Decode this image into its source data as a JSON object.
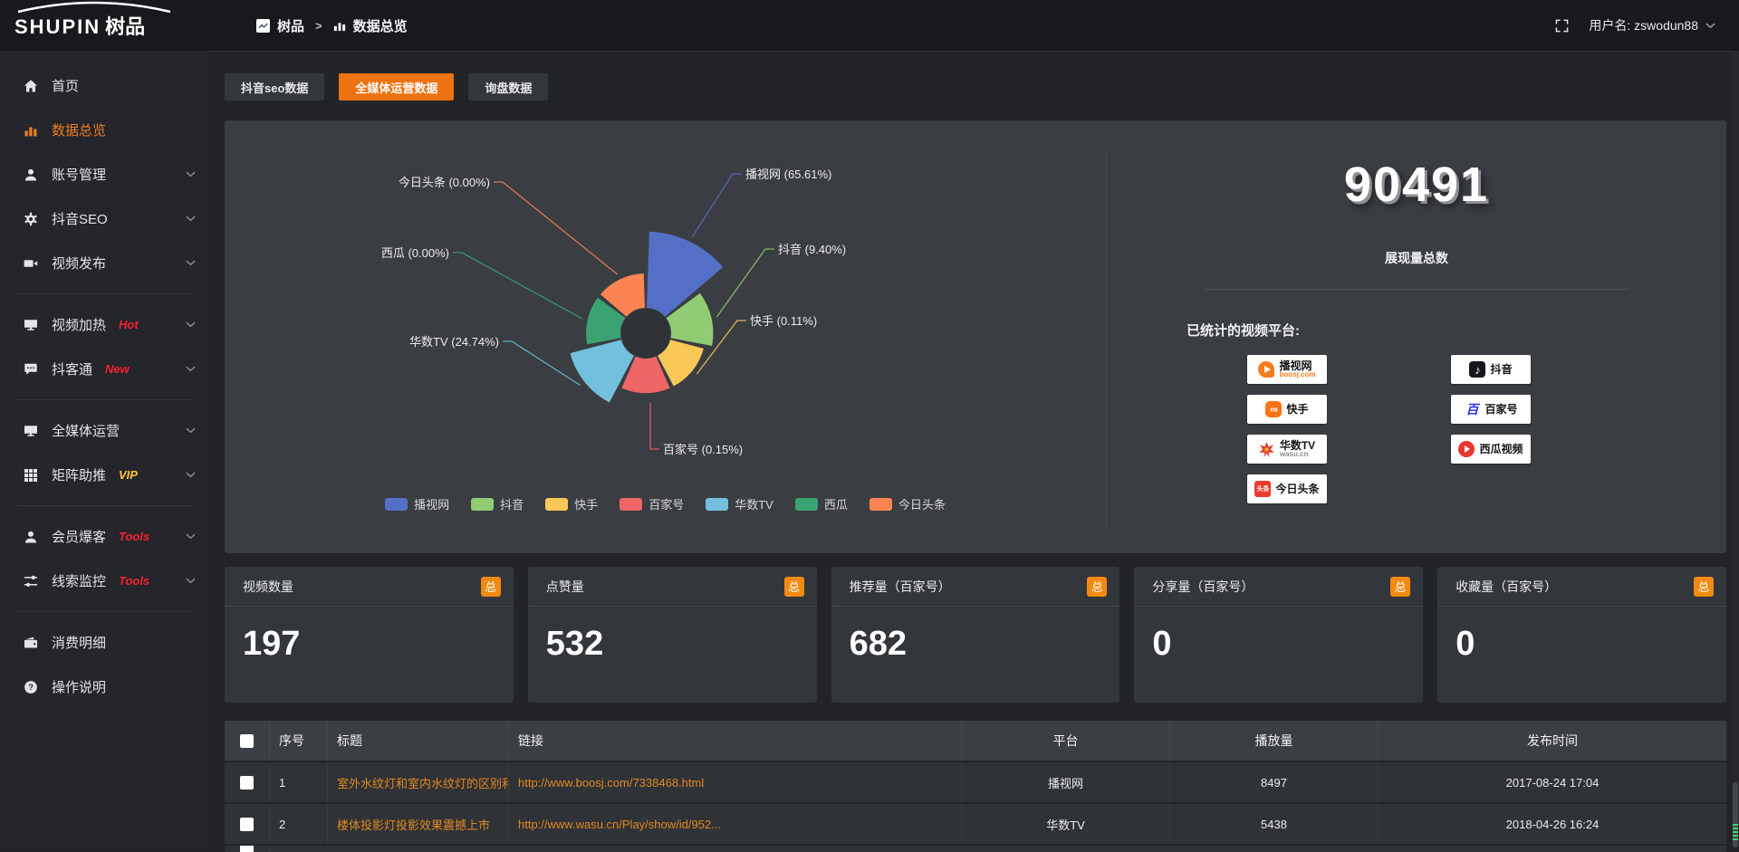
{
  "topbar": {
    "logo_text": "SHUPIN",
    "logo_suffix": "树品",
    "breadcrumb": {
      "root": "树品",
      "separator": ">",
      "current": "数据总览"
    },
    "user_label": "用户名: zswodun88"
  },
  "sidebar": {
    "items": [
      {
        "icon": "home-icon",
        "label": "首页"
      },
      {
        "icon": "bar-chart-icon",
        "label": "数据总览",
        "active": true
      },
      {
        "icon": "user-icon",
        "label": "账号管理",
        "expandable": true
      },
      {
        "icon": "gear-icon",
        "label": "抖音SEO",
        "expandable": true
      },
      {
        "icon": "video-camera-icon",
        "label": "视频发布",
        "expandable": true
      },
      {
        "divider": true
      },
      {
        "icon": "monitor-icon",
        "label": "视频加热",
        "tag": "Hot",
        "tag_color": "#f5222d",
        "expandable": true
      },
      {
        "icon": "chat-icon",
        "label": "抖客通",
        "tag": "New",
        "tag_color": "#f5222d",
        "expandable": true
      },
      {
        "divider": true
      },
      {
        "icon": "screen-icon",
        "label": "全媒体运营",
        "expandable": true
      },
      {
        "icon": "grid-icon",
        "label": "矩阵助推",
        "tag": "VIP",
        "tag_color": "#ffc53d",
        "expandable": true
      },
      {
        "divider": true
      },
      {
        "icon": "member-icon",
        "label": "会员爆客",
        "tag": "Tools",
        "tag_color": "#f5222d",
        "expandable": true
      },
      {
        "icon": "sliders-icon",
        "label": "线索监控",
        "tag": "Tools",
        "tag_color": "#f5222d",
        "expandable": true
      },
      {
        "divider": true
      },
      {
        "icon": "wallet-icon",
        "label": "消费明细"
      },
      {
        "icon": "question-icon",
        "label": "操作说明"
      }
    ]
  },
  "tabs": [
    {
      "label": "抖音seo数据",
      "active": false
    },
    {
      "label": "全媒体运营数据",
      "active": true
    },
    {
      "label": "询盘数据",
      "active": false
    }
  ],
  "chart_data": {
    "type": "pie",
    "variant": "nightingale-rose",
    "title": "",
    "categories": [
      "播视网",
      "抖音",
      "快手",
      "百家号",
      "华数TV",
      "西瓜",
      "今日头条"
    ],
    "values": [
      65.61,
      9.4,
      0.11,
      0.15,
      24.74,
      0,
      0
    ],
    "unit": "%",
    "colors": [
      "#5470c6",
      "#91cc75",
      "#fac858",
      "#ee6666",
      "#73c0de",
      "#3ba272",
      "#fc8452"
    ],
    "legend_position": "bottom",
    "label_format": "{name} ({value}%)"
  },
  "overview": {
    "total_value": "90491",
    "total_label": "展现量总数",
    "platforms_title": "已统计的视频平台:",
    "platforms_left": [
      {
        "kind": "boosj",
        "label": "播视网",
        "sub": "boosj.com"
      },
      {
        "kind": "kuaishou",
        "label": "快手"
      },
      {
        "kind": "wasu",
        "label": "华数TV",
        "sub": "wasu.cn"
      },
      {
        "kind": "toutiao",
        "label": "今日头条"
      }
    ],
    "platforms_right": [
      {
        "kind": "douyin",
        "label": "抖音"
      },
      {
        "kind": "baijia",
        "label": "百家号"
      },
      {
        "kind": "xigua",
        "label": "西瓜视频"
      }
    ]
  },
  "stat_cards": [
    {
      "title": "视频数量",
      "badge": "总",
      "value": "197"
    },
    {
      "title": "点赞量",
      "badge": "总",
      "value": "532"
    },
    {
      "title": "推荐量（百家号）",
      "badge": "总",
      "value": "682"
    },
    {
      "title": "分享量（百家号）",
      "badge": "总",
      "value": "0"
    },
    {
      "title": "收藏量（百家号）",
      "badge": "总",
      "value": "0"
    }
  ],
  "table": {
    "columns": [
      "序号",
      "标题",
      "链接",
      "平台",
      "播放量",
      "发布时间"
    ],
    "rows": [
      {
        "seq": "1",
        "title": "室外水纹灯和室内水纹灯的区别和简介",
        "link": "http://www.boosj.com/7338468.html",
        "platform": "播视网",
        "plays": "8497",
        "published": "2017-08-24 17:04"
      },
      {
        "seq": "2",
        "title": "楼体投影灯投影效果震撼上市",
        "link": "http://www.wasu.cn/Play/show/id/952...",
        "platform": "华数TV",
        "plays": "5438",
        "published": "2018-04-26 16:24"
      }
    ]
  },
  "colors": {
    "accent": "#ed7d1f",
    "tab_active": "#ed7211",
    "link": "#e2891f",
    "badge": "#f28a10"
  }
}
